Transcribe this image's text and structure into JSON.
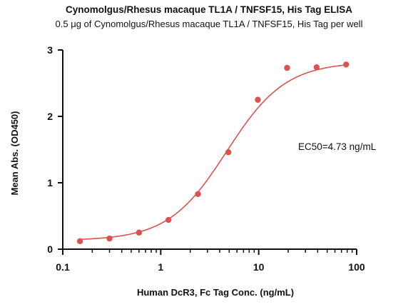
{
  "chart_data": {
    "type": "scatter",
    "title": "Cynomolgus/Rhesus macaque TL1A / TNFSF15, His Tag  ELISA",
    "subtitle": "0.5 μg of Cynomolgus/Rhesus macaque TL1A / TNFSF15, His Tag  per well",
    "xlabel": "Human DcR3, Fc Tag Conc. (ng/mL)",
    "ylabel": "Mean Abs. (OD450)",
    "x_scale": "log",
    "xlim": [
      0.1,
      100
    ],
    "ylim": [
      0,
      3
    ],
    "x_ticks": [
      0.1,
      1,
      10,
      100
    ],
    "x_tick_labels": [
      "0.1",
      "1",
      "10",
      "100"
    ],
    "y_ticks": [
      0,
      1,
      2,
      3
    ],
    "y_tick_labels": [
      "0",
      "1",
      "2",
      "3"
    ],
    "grid": false,
    "series": [
      {
        "color": "#d9534f",
        "x": [
          0.15,
          0.3,
          0.6,
          1.2,
          2.4,
          4.9,
          9.8,
          19.5,
          39,
          78
        ],
        "y": [
          0.12,
          0.16,
          0.25,
          0.44,
          0.83,
          1.46,
          2.25,
          2.73,
          2.74,
          2.78
        ]
      }
    ],
    "fit_curve": {
      "model": "4PL",
      "bottom": 0.13,
      "top": 2.82,
      "ec50": 4.73,
      "hill": 1.45,
      "color": "#d9534f"
    },
    "annotations": [
      {
        "text": "EC50=4.73 ng/mL"
      }
    ]
  }
}
